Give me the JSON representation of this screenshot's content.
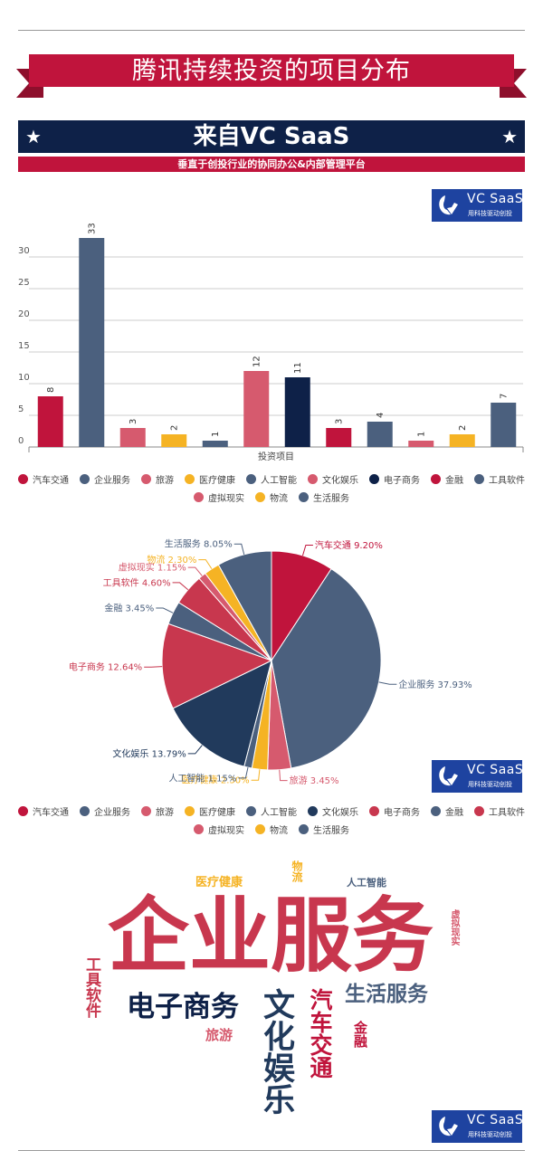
{
  "header": {
    "title": "腾讯持续投资的项目分布",
    "banner": "来自VC SaaS",
    "subtitle": "垂直于创投行业的协同办公&内部管理平台",
    "star": "★"
  },
  "logo": {
    "name": "VC SaaS",
    "tagline": "用科技驱动创投"
  },
  "colors": {
    "crimson": "#c0143c",
    "slate": "#4b607e",
    "pink": "#d65a6e",
    "amber": "#f5b324",
    "navy": "#0e2148",
    "red": "#c8374e",
    "logo_blue": "#1e43a0"
  },
  "legend": {
    "bar": [
      {
        "label": "汽车交通",
        "color": "#c0143c"
      },
      {
        "label": "企业服务",
        "color": "#4b607e"
      },
      {
        "label": "旅游",
        "color": "#d65a6e"
      },
      {
        "label": "医疗健康",
        "color": "#f5b324"
      },
      {
        "label": "人工智能",
        "color": "#4b607e"
      },
      {
        "label": "文化娱乐",
        "color": "#d65a6e"
      },
      {
        "label": "电子商务",
        "color": "#0e2148"
      },
      {
        "label": "金融",
        "color": "#c0143c"
      },
      {
        "label": "工具软件",
        "color": "#4b607e"
      },
      {
        "label": "虚拟现实",
        "color": "#d65a6e"
      },
      {
        "label": "物流",
        "color": "#f5b324"
      },
      {
        "label": "生活服务",
        "color": "#4b607e"
      }
    ],
    "pie": [
      {
        "label": "汽车交通",
        "color": "#c0143c"
      },
      {
        "label": "企业服务",
        "color": "#4b607e"
      },
      {
        "label": "旅游",
        "color": "#d65a6e"
      },
      {
        "label": "医疗健康",
        "color": "#f5b324"
      },
      {
        "label": "人工智能",
        "color": "#4b607e"
      },
      {
        "label": "文化娱乐",
        "color": "#213a5c"
      },
      {
        "label": "电子商务",
        "color": "#c8374e"
      },
      {
        "label": "金融",
        "color": "#4b607e"
      },
      {
        "label": "工具软件",
        "color": "#c8374e"
      },
      {
        "label": "虚拟现实",
        "color": "#d65a6e"
      },
      {
        "label": "物流",
        "color": "#f5b324"
      },
      {
        "label": "生活服务",
        "color": "#4b607e"
      }
    ]
  },
  "chart_data": [
    {
      "type": "bar",
      "title": "",
      "xlabel": "投资项目",
      "ylabel": "",
      "ylim": [
        0,
        33
      ],
      "yticks": [
        0,
        5,
        10,
        15,
        20,
        25,
        30
      ],
      "categories": [
        "汽车交通",
        "企业服务",
        "旅游",
        "医疗健康",
        "人工智能",
        "文化娱乐",
        "电子商务",
        "金融",
        "工具软件",
        "虚拟现实",
        "物流",
        "生活服务"
      ],
      "values": [
        8,
        33,
        3,
        2,
        1,
        12,
        11,
        3,
        4,
        1,
        2,
        7
      ],
      "colors": [
        "#c0143c",
        "#4b607e",
        "#d65a6e",
        "#f5b324",
        "#4b607e",
        "#d65a6e",
        "#0e2148",
        "#c0143c",
        "#4b607e",
        "#d65a6e",
        "#f5b324",
        "#4b607e"
      ]
    },
    {
      "type": "pie",
      "slices": [
        {
          "label": "汽车交通",
          "percent": "9.20%",
          "value": 9.2,
          "color": "#c0143c"
        },
        {
          "label": "企业服务",
          "percent": "37.93%",
          "value": 37.93,
          "color": "#4b607e"
        },
        {
          "label": "旅游",
          "percent": "3.45%",
          "value": 3.45,
          "color": "#d65a6e"
        },
        {
          "label": "医疗健康",
          "percent": "2.30%",
          "value": 2.3,
          "color": "#f5b324"
        },
        {
          "label": "人工智能",
          "percent": "1.15%",
          "value": 1.15,
          "color": "#4b607e"
        },
        {
          "label": "文化娱乐",
          "percent": "13.79%",
          "value": 13.79,
          "color": "#213a5c"
        },
        {
          "label": "电子商务",
          "percent": "12.64%",
          "value": 12.64,
          "color": "#c8374e"
        },
        {
          "label": "金融",
          "percent": "3.45%",
          "value": 3.45,
          "color": "#4b607e"
        },
        {
          "label": "工具软件",
          "percent": "4.60%",
          "value": 4.6,
          "color": "#c8374e"
        },
        {
          "label": "虚拟现实",
          "percent": "1.15%",
          "value": 1.15,
          "color": "#d65a6e"
        },
        {
          "label": "物流",
          "percent": "2.30%",
          "value": 2.3,
          "color": "#f5b324"
        },
        {
          "label": "生活服务",
          "percent": "8.05%",
          "value": 8.05,
          "color": "#4b607e"
        }
      ]
    }
  ],
  "wordcloud": {
    "words": [
      {
        "text": "企业服务",
        "color": "#c8374e"
      },
      {
        "text": "电子商务",
        "color": "#0e2148"
      },
      {
        "text": "文化娱乐",
        "color": "#213a5c"
      },
      {
        "text": "汽车交通",
        "color": "#c0143c"
      },
      {
        "text": "生活服务",
        "color": "#4b607e"
      },
      {
        "text": "工具软件",
        "color": "#c8374e"
      },
      {
        "text": "旅游",
        "color": "#d65a6e"
      },
      {
        "text": "金融",
        "color": "#c0143c"
      },
      {
        "text": "医疗健康",
        "color": "#f5b324"
      },
      {
        "text": "物流",
        "color": "#f5b324"
      },
      {
        "text": "人工智能",
        "color": "#4b607e"
      },
      {
        "text": "虚拟现实",
        "color": "#d65a6e"
      }
    ]
  }
}
